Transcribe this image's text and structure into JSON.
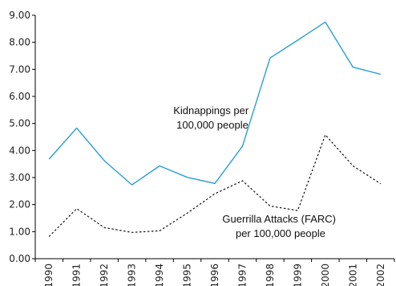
{
  "chart_data": {
    "type": "line",
    "title": "",
    "xlabel": "",
    "ylabel": "",
    "categories": [
      "1990",
      "1991",
      "1992",
      "1993",
      "1994",
      "1995",
      "1996",
      "1997",
      "1998",
      "1999",
      "2000",
      "2001",
      "2002"
    ],
    "ylim": [
      0,
      9
    ],
    "yticks": [
      "0.00",
      "1.00",
      "2.00",
      "3.00",
      "4.00",
      "5.00",
      "6.00",
      "7.00",
      "8.00",
      "9.00"
    ],
    "grid": false,
    "legend": "none",
    "series": [
      {
        "values": [
          3.68,
          4.83,
          3.62,
          2.73,
          3.43,
          3.01,
          2.78,
          4.16,
          7.42,
          8.08,
          8.75,
          7.08,
          6.82
        ],
        "color": "#2a9fd6",
        "style": "solid"
      },
      {
        "values": [
          0.82,
          1.85,
          1.15,
          0.97,
          1.03,
          1.68,
          2.4,
          2.88,
          1.95,
          1.78,
          4.58,
          3.43,
          2.77
        ],
        "color": "#111111",
        "style": "dotted"
      }
    ],
    "annotations": [
      {
        "lines": [
          "Kidnappings per",
          "100,000 people"
        ]
      },
      {
        "lines": [
          "Guerrilla Attacks (FARC)",
          "per 100,000 people"
        ]
      }
    ]
  }
}
